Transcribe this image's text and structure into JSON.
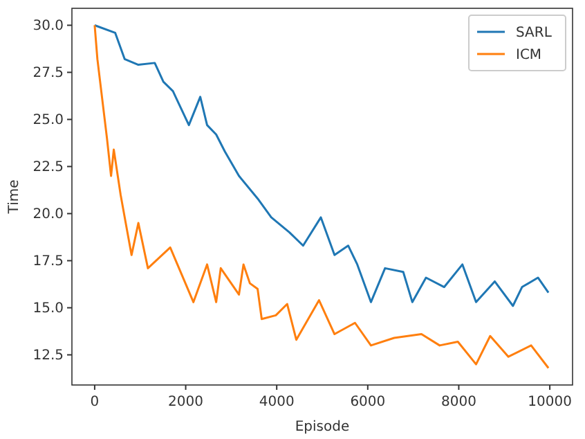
{
  "chart_data": {
    "type": "line",
    "xlabel": "Episode",
    "ylabel": "Time",
    "xlim": [
      -500,
      10500
    ],
    "ylim": [
      10.9,
      30.9
    ],
    "xticks": [
      0,
      2000,
      4000,
      6000,
      8000,
      10000
    ],
    "yticks": [
      {
        "value": 12.5,
        "label": "12.5"
      },
      {
        "value": 15,
        "label": "15.0"
      },
      {
        "value": 17.5,
        "label": "17.5"
      },
      {
        "value": 20,
        "label": "20.0"
      },
      {
        "value": 22.5,
        "label": "22.5"
      },
      {
        "value": 25,
        "label": "25.0"
      },
      {
        "value": 27.5,
        "label": "27.5"
      },
      {
        "value": 30,
        "label": "30.0"
      }
    ],
    "legend": "top right",
    "grid": false,
    "series": [
      {
        "name": "SARL",
        "color": "#1f77b4",
        "x": [
          0,
          450,
          660,
          960,
          1320,
          1510,
          1720,
          2070,
          2320,
          2470,
          2670,
          2860,
          3170,
          3580,
          3880,
          4280,
          4580,
          4970,
          5270,
          5570,
          5770,
          6070,
          6380,
          6780,
          6980,
          7280,
          7680,
          8080,
          8380,
          8790,
          9190,
          9390,
          9740,
          9970
        ],
        "values": [
          30,
          29.6,
          28.2,
          27.9,
          28,
          27,
          26.5,
          24.7,
          26.2,
          24.7,
          24.2,
          23.3,
          22,
          20.8,
          19.8,
          19,
          18.3,
          19.8,
          17.8,
          18.3,
          17.3,
          15.3,
          17.1,
          16.9,
          15.3,
          16.6,
          16.1,
          17.3,
          15.3,
          16.4,
          15.1,
          16.1,
          16.6,
          15.8
        ]
      },
      {
        "name": "ICM",
        "color": "#ff7f0e",
        "x": [
          0,
          60,
          150,
          270,
          360,
          420,
          570,
          660,
          810,
          960,
          1170,
          1660,
          2170,
          2470,
          2670,
          2770,
          3170,
          3270,
          3410,
          3580,
          3670,
          3980,
          4230,
          4430,
          4930,
          5270,
          5720,
          6070,
          6580,
          7180,
          7580,
          7980,
          8380,
          8690,
          9090,
          9590,
          9970
        ],
        "values": [
          30,
          28.2,
          26.4,
          24,
          22,
          23.4,
          21,
          19.8,
          17.8,
          19.5,
          17.1,
          18.2,
          15.3,
          17.3,
          15.3,
          17.1,
          15.7,
          17.3,
          16.3,
          16,
          14.4,
          14.6,
          15.2,
          13.3,
          15.4,
          13.6,
          14.2,
          13,
          13.4,
          13.6,
          13,
          13.2,
          12,
          13.5,
          12.4,
          13,
          11.8
        ]
      }
    ]
  }
}
